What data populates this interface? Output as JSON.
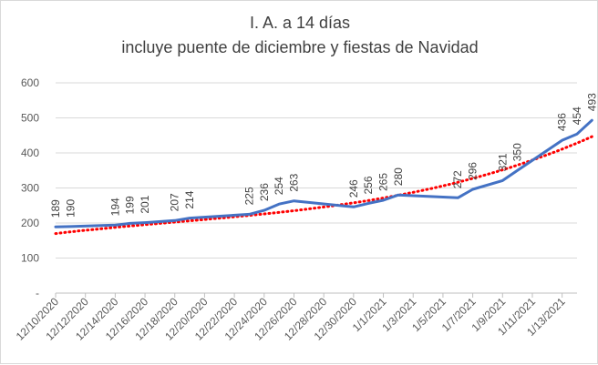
{
  "chart_data": {
    "type": "line",
    "title": [
      "I. A. a 14 días",
      "incluye puente de diciembre y fiestas de Navidad"
    ],
    "xlabel": "",
    "ylabel": "",
    "ylim": [
      0,
      600
    ],
    "yticks": [
      {
        "value": 0,
        "label": "-"
      },
      {
        "value": 100,
        "label": "100"
      },
      {
        "value": 200,
        "label": "200"
      },
      {
        "value": 300,
        "label": "300"
      },
      {
        "value": 400,
        "label": "400"
      },
      {
        "value": 500,
        "label": "500"
      },
      {
        "value": 600,
        "label": "600"
      }
    ],
    "x_tick_labels": [
      "12/10/2020",
      "12/12/2020",
      "12/14/2020",
      "12/16/2020",
      "12/18/2020",
      "12/20/2020",
      "12/22/2020",
      "12/24/2020",
      "12/26/2020",
      "12/28/2020",
      "12/30/2020",
      "1/1/2021",
      "1/3/2021",
      "1/5/2021",
      "1/7/2021",
      "1/9/2021",
      "1/11/2021",
      "1/13/2021"
    ],
    "x_start": "2020-12-10",
    "x_end": "2021-01-14",
    "series": [
      {
        "name": "IA 14 días",
        "color": "#4472c4",
        "style": "solid",
        "points": [
          {
            "x": 0,
            "y": 189
          },
          {
            "x": 1,
            "y": 190
          },
          {
            "x": 4,
            "y": 194
          },
          {
            "x": 5,
            "y": 199
          },
          {
            "x": 6,
            "y": 201
          },
          {
            "x": 8,
            "y": 207
          },
          {
            "x": 9,
            "y": 214
          },
          {
            "x": 13,
            "y": 225
          },
          {
            "x": 14,
            "y": 236
          },
          {
            "x": 15,
            "y": 254
          },
          {
            "x": 16,
            "y": 263
          },
          {
            "x": 20,
            "y": 246
          },
          {
            "x": 21,
            "y": 256
          },
          {
            "x": 22,
            "y": 265
          },
          {
            "x": 23,
            "y": 280
          },
          {
            "x": 27,
            "y": 272
          },
          {
            "x": 28,
            "y": 296
          },
          {
            "x": 30,
            "y": 321
          },
          {
            "x": 31,
            "y": 350
          },
          {
            "x": 34,
            "y": 436
          },
          {
            "x": 35,
            "y": 454
          },
          {
            "x": 36,
            "y": 493
          }
        ]
      },
      {
        "name": "Tendencia",
        "color": "#ff0000",
        "style": "dotted",
        "polynomial": [
          170,
          4.9,
          -0.155,
          0.00645
        ]
      }
    ],
    "data_labels": [
      {
        "x": 0,
        "text": "189"
      },
      {
        "x": 1,
        "text": "190"
      },
      {
        "x": 4,
        "text": "194"
      },
      {
        "x": 5,
        "text": "199"
      },
      {
        "x": 6,
        "text": "201"
      },
      {
        "x": 8,
        "text": "207"
      },
      {
        "x": 9,
        "text": "214"
      },
      {
        "x": 13,
        "text": "225"
      },
      {
        "x": 14,
        "text": "236"
      },
      {
        "x": 15,
        "text": "254"
      },
      {
        "x": 16,
        "text": "263"
      },
      {
        "x": 20,
        "text": "246"
      },
      {
        "x": 21,
        "text": "256"
      },
      {
        "x": 22,
        "text": "265"
      },
      {
        "x": 23,
        "text": "280"
      },
      {
        "x": 27,
        "text": "272"
      },
      {
        "x": 28,
        "text": "296"
      },
      {
        "x": 30,
        "text": "321"
      },
      {
        "x": 31,
        "text": "350"
      },
      {
        "x": 34,
        "text": "436"
      },
      {
        "x": 35,
        "text": "454"
      },
      {
        "x": 36,
        "text": "493"
      }
    ],
    "grid": true,
    "legend": "none"
  }
}
